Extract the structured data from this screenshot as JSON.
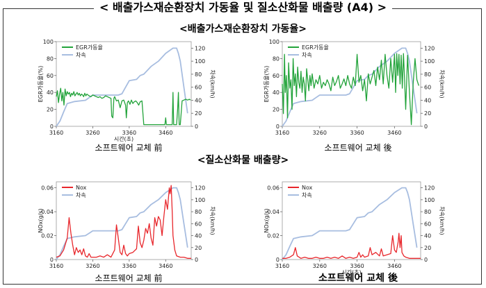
{
  "main_title": "< 배출가스재순환장치 가동율 및 질소산화물 배출량 (A4) >",
  "section1_title": "<배출가스재순환장치 가동율>",
  "section2_title": "<질소산화물 배출량>",
  "captions": [
    "소프트웨어 교체 前",
    "소프트웨어 교체 後",
    "소프트웨어 교체 前",
    "소프트웨어 교체 後"
  ],
  "chart_data": [
    {
      "type": "line",
      "x_ticks": [
        "3160",
        "3260",
        "3360",
        "3460"
      ],
      "xlabel": "시간(초)",
      "ylabel": "EGR가동율(%)",
      "ylabel_right": "차속(km/h)",
      "xlim": [
        3160,
        3530
      ],
      "ylim": [
        0,
        100
      ],
      "ylim_right": [
        0,
        130
      ],
      "y_ticks": [
        0,
        20,
        40,
        60,
        80,
        100
      ],
      "y_ticks_right": [
        0,
        20,
        40,
        60,
        80,
        100,
        120
      ],
      "legend": "top-left",
      "series": [
        {
          "name": "EGR가동율",
          "axis": "left",
          "color": "#22a33a",
          "x": [
            3160,
            3163,
            3166,
            3169,
            3172,
            3175,
            3178,
            3181,
            3184,
            3187,
            3190,
            3193,
            3196,
            3199,
            3202,
            3205,
            3208,
            3211,
            3214,
            3217,
            3220,
            3223,
            3226,
            3229,
            3232,
            3235,
            3238,
            3241,
            3244,
            3247,
            3250,
            3255,
            3260,
            3265,
            3270,
            3275,
            3280,
            3285,
            3290,
            3295,
            3300,
            3305,
            3310,
            3312,
            3315,
            3318,
            3320,
            3325,
            3330,
            3335,
            3340,
            3345,
            3350,
            3352,
            3355,
            3358,
            3362,
            3366,
            3370,
            3374,
            3378,
            3382,
            3386,
            3390,
            3395,
            3400,
            3410,
            3420,
            3430,
            3440,
            3450,
            3458,
            3460,
            3462,
            3470,
            3478,
            3480,
            3482,
            3490,
            3493,
            3495,
            3497,
            3500,
            3505,
            3510,
            3515,
            3520,
            3525,
            3528
          ],
          "y": [
            35,
            42,
            28,
            38,
            45,
            30,
            40,
            25,
            44,
            36,
            41,
            38,
            40,
            35,
            39,
            37,
            41,
            36,
            38,
            40,
            37,
            39,
            36,
            38,
            37,
            35,
            39,
            36,
            38,
            37,
            36,
            35,
            37,
            36,
            35,
            34,
            35,
            33,
            34,
            36,
            35,
            34,
            33,
            12,
            10,
            33,
            35,
            30,
            31,
            22,
            30,
            31,
            25,
            10,
            28,
            30,
            26,
            31,
            27,
            29,
            30,
            28,
            25,
            29,
            30,
            2,
            2,
            2,
            2,
            2,
            2,
            2,
            10,
            2,
            2,
            2,
            40,
            2,
            2,
            22,
            40,
            2,
            2,
            30,
            31,
            32,
            31,
            32,
            31
          ]
        },
        {
          "name": "차속",
          "axis": "right",
          "color": "#a7bde0",
          "x": [
            3160,
            3170,
            3180,
            3190,
            3210,
            3240,
            3250,
            3260,
            3300,
            3330,
            3340,
            3350,
            3360,
            3380,
            3390,
            3400,
            3420,
            3440,
            3460,
            3480,
            3490,
            3495,
            3500,
            3510,
            3520
          ],
          "y": [
            0,
            8,
            22,
            35,
            38,
            40,
            44,
            48,
            48,
            48,
            50,
            60,
            70,
            72,
            78,
            80,
            92,
            100,
            112,
            120,
            120,
            112,
            100,
            60,
            20
          ]
        }
      ]
    },
    {
      "type": "line",
      "x_ticks": [
        "3160",
        "3260",
        "3360",
        "3460"
      ],
      "xlabel": "",
      "ylabel": "EGR가동율(%)",
      "ylabel_right": "차속(km/h)",
      "xlim": [
        3160,
        3530
      ],
      "ylim": [
        0,
        100
      ],
      "ylim_right": [
        0,
        130
      ],
      "y_ticks": [
        0,
        20,
        40,
        60,
        80,
        100
      ],
      "y_ticks_right": [
        0,
        20,
        40,
        60,
        80,
        100,
        120
      ],
      "legend": "top-left",
      "series": [
        {
          "name": "EGR가동율",
          "axis": "left",
          "color": "#22a33a",
          "x": [
            3160,
            3163,
            3166,
            3168,
            3171,
            3174,
            3177,
            3180,
            3183,
            3186,
            3189,
            3192,
            3195,
            3198,
            3201,
            3204,
            3207,
            3210,
            3213,
            3216,
            3219,
            3222,
            3225,
            3228,
            3231,
            3234,
            3237,
            3240,
            3245,
            3250,
            3255,
            3260,
            3265,
            3270,
            3275,
            3280,
            3285,
            3290,
            3295,
            3300,
            3305,
            3310,
            3315,
            3320,
            3325,
            3330,
            3335,
            3340,
            3345,
            3350,
            3355,
            3360,
            3365,
            3370,
            3375,
            3380,
            3385,
            3390,
            3395,
            3400,
            3405,
            3410,
            3415,
            3420,
            3425,
            3430,
            3435,
            3440,
            3445,
            3450,
            3455,
            3460,
            3463,
            3466,
            3469,
            3472,
            3475,
            3478,
            3481,
            3484,
            3487,
            3490,
            3495,
            3500,
            3505,
            3510,
            3515,
            3520,
            3525
          ],
          "y": [
            50,
            15,
            85,
            40,
            60,
            10,
            75,
            45,
            55,
            20,
            80,
            48,
            62,
            35,
            70,
            52,
            45,
            65,
            40,
            58,
            50,
            30,
            68,
            55,
            42,
            60,
            48,
            62,
            45,
            55,
            50,
            60,
            45,
            52,
            48,
            55,
            50,
            42,
            58,
            48,
            53,
            60,
            45,
            50,
            56,
            48,
            60,
            50,
            45,
            58,
            48,
            85,
            52,
            60,
            42,
            55,
            30,
            62,
            50,
            58,
            66,
            48,
            70,
            55,
            78,
            50,
            85,
            60,
            45,
            80,
            52,
            85,
            40,
            86,
            60,
            85,
            50,
            84,
            45,
            86,
            55,
            20,
            84,
            40,
            2,
            50,
            80,
            55,
            48
          ]
        },
        {
          "name": "차속",
          "axis": "right",
          "color": "#a7bde0",
          "x": [
            3160,
            3170,
            3180,
            3190,
            3210,
            3240,
            3250,
            3260,
            3300,
            3330,
            3340,
            3350,
            3360,
            3380,
            3390,
            3400,
            3420,
            3440,
            3460,
            3480,
            3490,
            3495,
            3500,
            3510,
            3520
          ],
          "y": [
            0,
            8,
            22,
            35,
            38,
            40,
            44,
            48,
            48,
            48,
            50,
            60,
            70,
            72,
            78,
            80,
            92,
            100,
            112,
            120,
            120,
            112,
            100,
            60,
            20
          ]
        }
      ]
    },
    {
      "type": "line",
      "x_ticks": [
        "3160",
        "3260",
        "3360",
        "3460"
      ],
      "xlabel": "",
      "ylabel": "NOx(g/s)",
      "ylabel_right": "차속(km/h)",
      "xlim": [
        3160,
        3530
      ],
      "ylim": [
        0,
        0.065
      ],
      "ylim_right": [
        0,
        130
      ],
      "y_ticks": [
        0,
        0.02,
        0.04,
        0.06
      ],
      "y_ticks_labels": [
        "0",
        "0.02",
        "0.04",
        "0.06"
      ],
      "y_ticks_right": [
        0,
        20,
        40,
        60,
        80,
        100,
        120
      ],
      "legend": "top-left",
      "series": [
        {
          "name": "Nox",
          "axis": "left",
          "color": "#e8262b",
          "x": [
            3160,
            3170,
            3180,
            3190,
            3195,
            3200,
            3205,
            3210,
            3215,
            3220,
            3225,
            3230,
            3235,
            3240,
            3245,
            3250,
            3255,
            3260,
            3270,
            3280,
            3290,
            3300,
            3310,
            3320,
            3325,
            3330,
            3335,
            3340,
            3345,
            3350,
            3355,
            3360,
            3370,
            3380,
            3385,
            3390,
            3395,
            3400,
            3405,
            3410,
            3415,
            3420,
            3425,
            3430,
            3435,
            3440,
            3445,
            3450,
            3455,
            3460,
            3465,
            3470,
            3472,
            3475,
            3478,
            3480,
            3485,
            3490,
            3500,
            3510,
            3520,
            3530
          ],
          "y": [
            0.002,
            0.003,
            0.008,
            0.018,
            0.035,
            0.022,
            0.012,
            0.004,
            0.01,
            0.006,
            0.008,
            0.004,
            0.009,
            0.003,
            0.002,
            0.005,
            0.002,
            0.002,
            0.002,
            0.003,
            0.002,
            0.004,
            0.002,
            0.008,
            0.029,
            0.018,
            0.006,
            0.004,
            0.012,
            0.005,
            0.003,
            0.005,
            0.006,
            0.009,
            0.028,
            0.014,
            0.01,
            0.016,
            0.026,
            0.022,
            0.03,
            0.018,
            0.012,
            0.035,
            0.028,
            0.036,
            0.033,
            0.02,
            0.036,
            0.05,
            0.042,
            0.06,
            0.055,
            0.062,
            0.04,
            0.02,
            0.008,
            0.003,
            0.002,
            0.002,
            0.001,
            0.001
          ]
        },
        {
          "name": "차속",
          "axis": "right",
          "color": "#a7bde0",
          "x": [
            3160,
            3170,
            3180,
            3190,
            3210,
            3240,
            3250,
            3260,
            3300,
            3330,
            3340,
            3350,
            3360,
            3380,
            3390,
            3400,
            3420,
            3440,
            3460,
            3480,
            3490,
            3495,
            3500,
            3510,
            3520
          ],
          "y": [
            0,
            8,
            22,
            35,
            38,
            40,
            44,
            48,
            48,
            48,
            50,
            60,
            70,
            72,
            78,
            80,
            92,
            100,
            112,
            120,
            120,
            112,
            100,
            60,
            20
          ]
        }
      ]
    },
    {
      "type": "line",
      "x_ticks": [
        "3160",
        "3260",
        "3360",
        "3460"
      ],
      "xlabel": "시간(초)",
      "ylabel": "NOx(g/s)",
      "ylabel_right": "차속(km/h)",
      "xlim": [
        3160,
        3530
      ],
      "ylim": [
        0,
        0.065
      ],
      "ylim_right": [
        0,
        130
      ],
      "y_ticks": [
        0,
        0.02,
        0.04,
        0.06
      ],
      "y_ticks_labels": [
        "0",
        "0.02",
        "0.04",
        "0.06"
      ],
      "y_ticks_right": [
        0,
        20,
        40,
        60,
        80,
        100,
        120
      ],
      "legend": "top-left",
      "series": [
        {
          "name": "Nox",
          "axis": "left",
          "color": "#e8262b",
          "x": [
            3160,
            3170,
            3180,
            3190,
            3195,
            3200,
            3205,
            3210,
            3220,
            3230,
            3240,
            3250,
            3260,
            3270,
            3280,
            3290,
            3300,
            3310,
            3320,
            3330,
            3340,
            3350,
            3360,
            3365,
            3370,
            3375,
            3380,
            3390,
            3395,
            3400,
            3410,
            3420,
            3425,
            3430,
            3440,
            3450,
            3455,
            3460,
            3465,
            3470,
            3472,
            3475,
            3478,
            3480,
            3485,
            3490,
            3500,
            3510,
            3520,
            3530
          ],
          "y": [
            0.001,
            0.001,
            0.002,
            0.004,
            0.01,
            0.003,
            0.002,
            0.001,
            0.002,
            0.001,
            0.001,
            0.002,
            0.001,
            0.001,
            0.002,
            0.001,
            0.002,
            0.001,
            0.003,
            0.001,
            0.002,
            0.001,
            0.002,
            0.006,
            0.002,
            0.004,
            0.002,
            0.003,
            0.01,
            0.004,
            0.006,
            0.003,
            0.009,
            0.003,
            0.004,
            0.005,
            0.02,
            0.008,
            0.006,
            0.015,
            0.022,
            0.01,
            0.02,
            0.006,
            0.003,
            0.002,
            0.001,
            0.001,
            0.001,
            0.001
          ]
        },
        {
          "name": "차속",
          "axis": "right",
          "color": "#a7bde0",
          "x": [
            3160,
            3170,
            3180,
            3190,
            3210,
            3240,
            3250,
            3260,
            3300,
            3330,
            3340,
            3350,
            3360,
            3380,
            3390,
            3400,
            3420,
            3440,
            3460,
            3480,
            3490,
            3495,
            3500,
            3510,
            3520
          ],
          "y": [
            0,
            8,
            22,
            35,
            38,
            40,
            44,
            48,
            48,
            48,
            50,
            60,
            70,
            72,
            78,
            80,
            92,
            100,
            112,
            120,
            120,
            112,
            100,
            60,
            20
          ]
        }
      ]
    }
  ]
}
